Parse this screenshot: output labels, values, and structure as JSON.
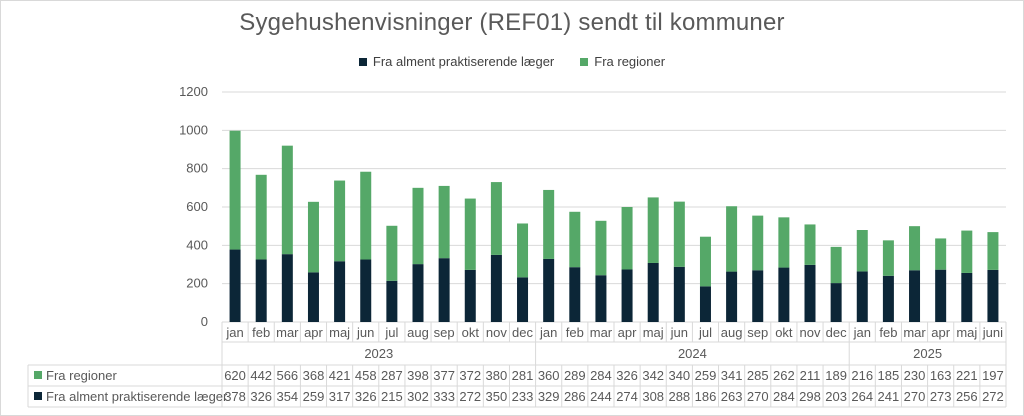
{
  "chart_data": {
    "type": "bar",
    "stacked": true,
    "title": "Sygehushenvisninger (REF01) sendt til kommuner",
    "ylim": [
      0,
      1200
    ],
    "yticks": [
      "0",
      "200",
      "400",
      "600",
      "800",
      "1000",
      "1200"
    ],
    "grid": true,
    "legend_position": "top",
    "years": [
      {
        "label": "2023",
        "months": 12
      },
      {
        "label": "2024",
        "months": 12
      },
      {
        "label": "2025",
        "months": 6
      }
    ],
    "categories": [
      "jan",
      "feb",
      "mar",
      "apr",
      "maj",
      "jun",
      "jul",
      "aug",
      "sep",
      "okt",
      "nov",
      "dec",
      "jan",
      "feb",
      "mar",
      "apr",
      "maj",
      "jun",
      "jul",
      "aug",
      "sep",
      "okt",
      "nov",
      "dec",
      "jan",
      "feb",
      "mar",
      "apr",
      "maj",
      "juni"
    ],
    "series": [
      {
        "name": "Fra alment praktiserende læger",
        "color": "#0c2637",
        "values": [
          378,
          326,
          354,
          259,
          317,
          326,
          215,
          302,
          333,
          272,
          350,
          233,
          329,
          286,
          244,
          274,
          308,
          288,
          186,
          263,
          270,
          284,
          298,
          203,
          264,
          241,
          270,
          273,
          256,
          272
        ]
      },
      {
        "name": "Fra regioner",
        "color": "#55a868",
        "values": [
          620,
          442,
          566,
          368,
          421,
          458,
          287,
          398,
          377,
          372,
          380,
          281,
          360,
          289,
          284,
          326,
          342,
          340,
          259,
          341,
          285,
          262,
          211,
          189,
          216,
          185,
          230,
          163,
          221,
          197
        ]
      }
    ],
    "table_rows_order": [
      1,
      0
    ]
  }
}
